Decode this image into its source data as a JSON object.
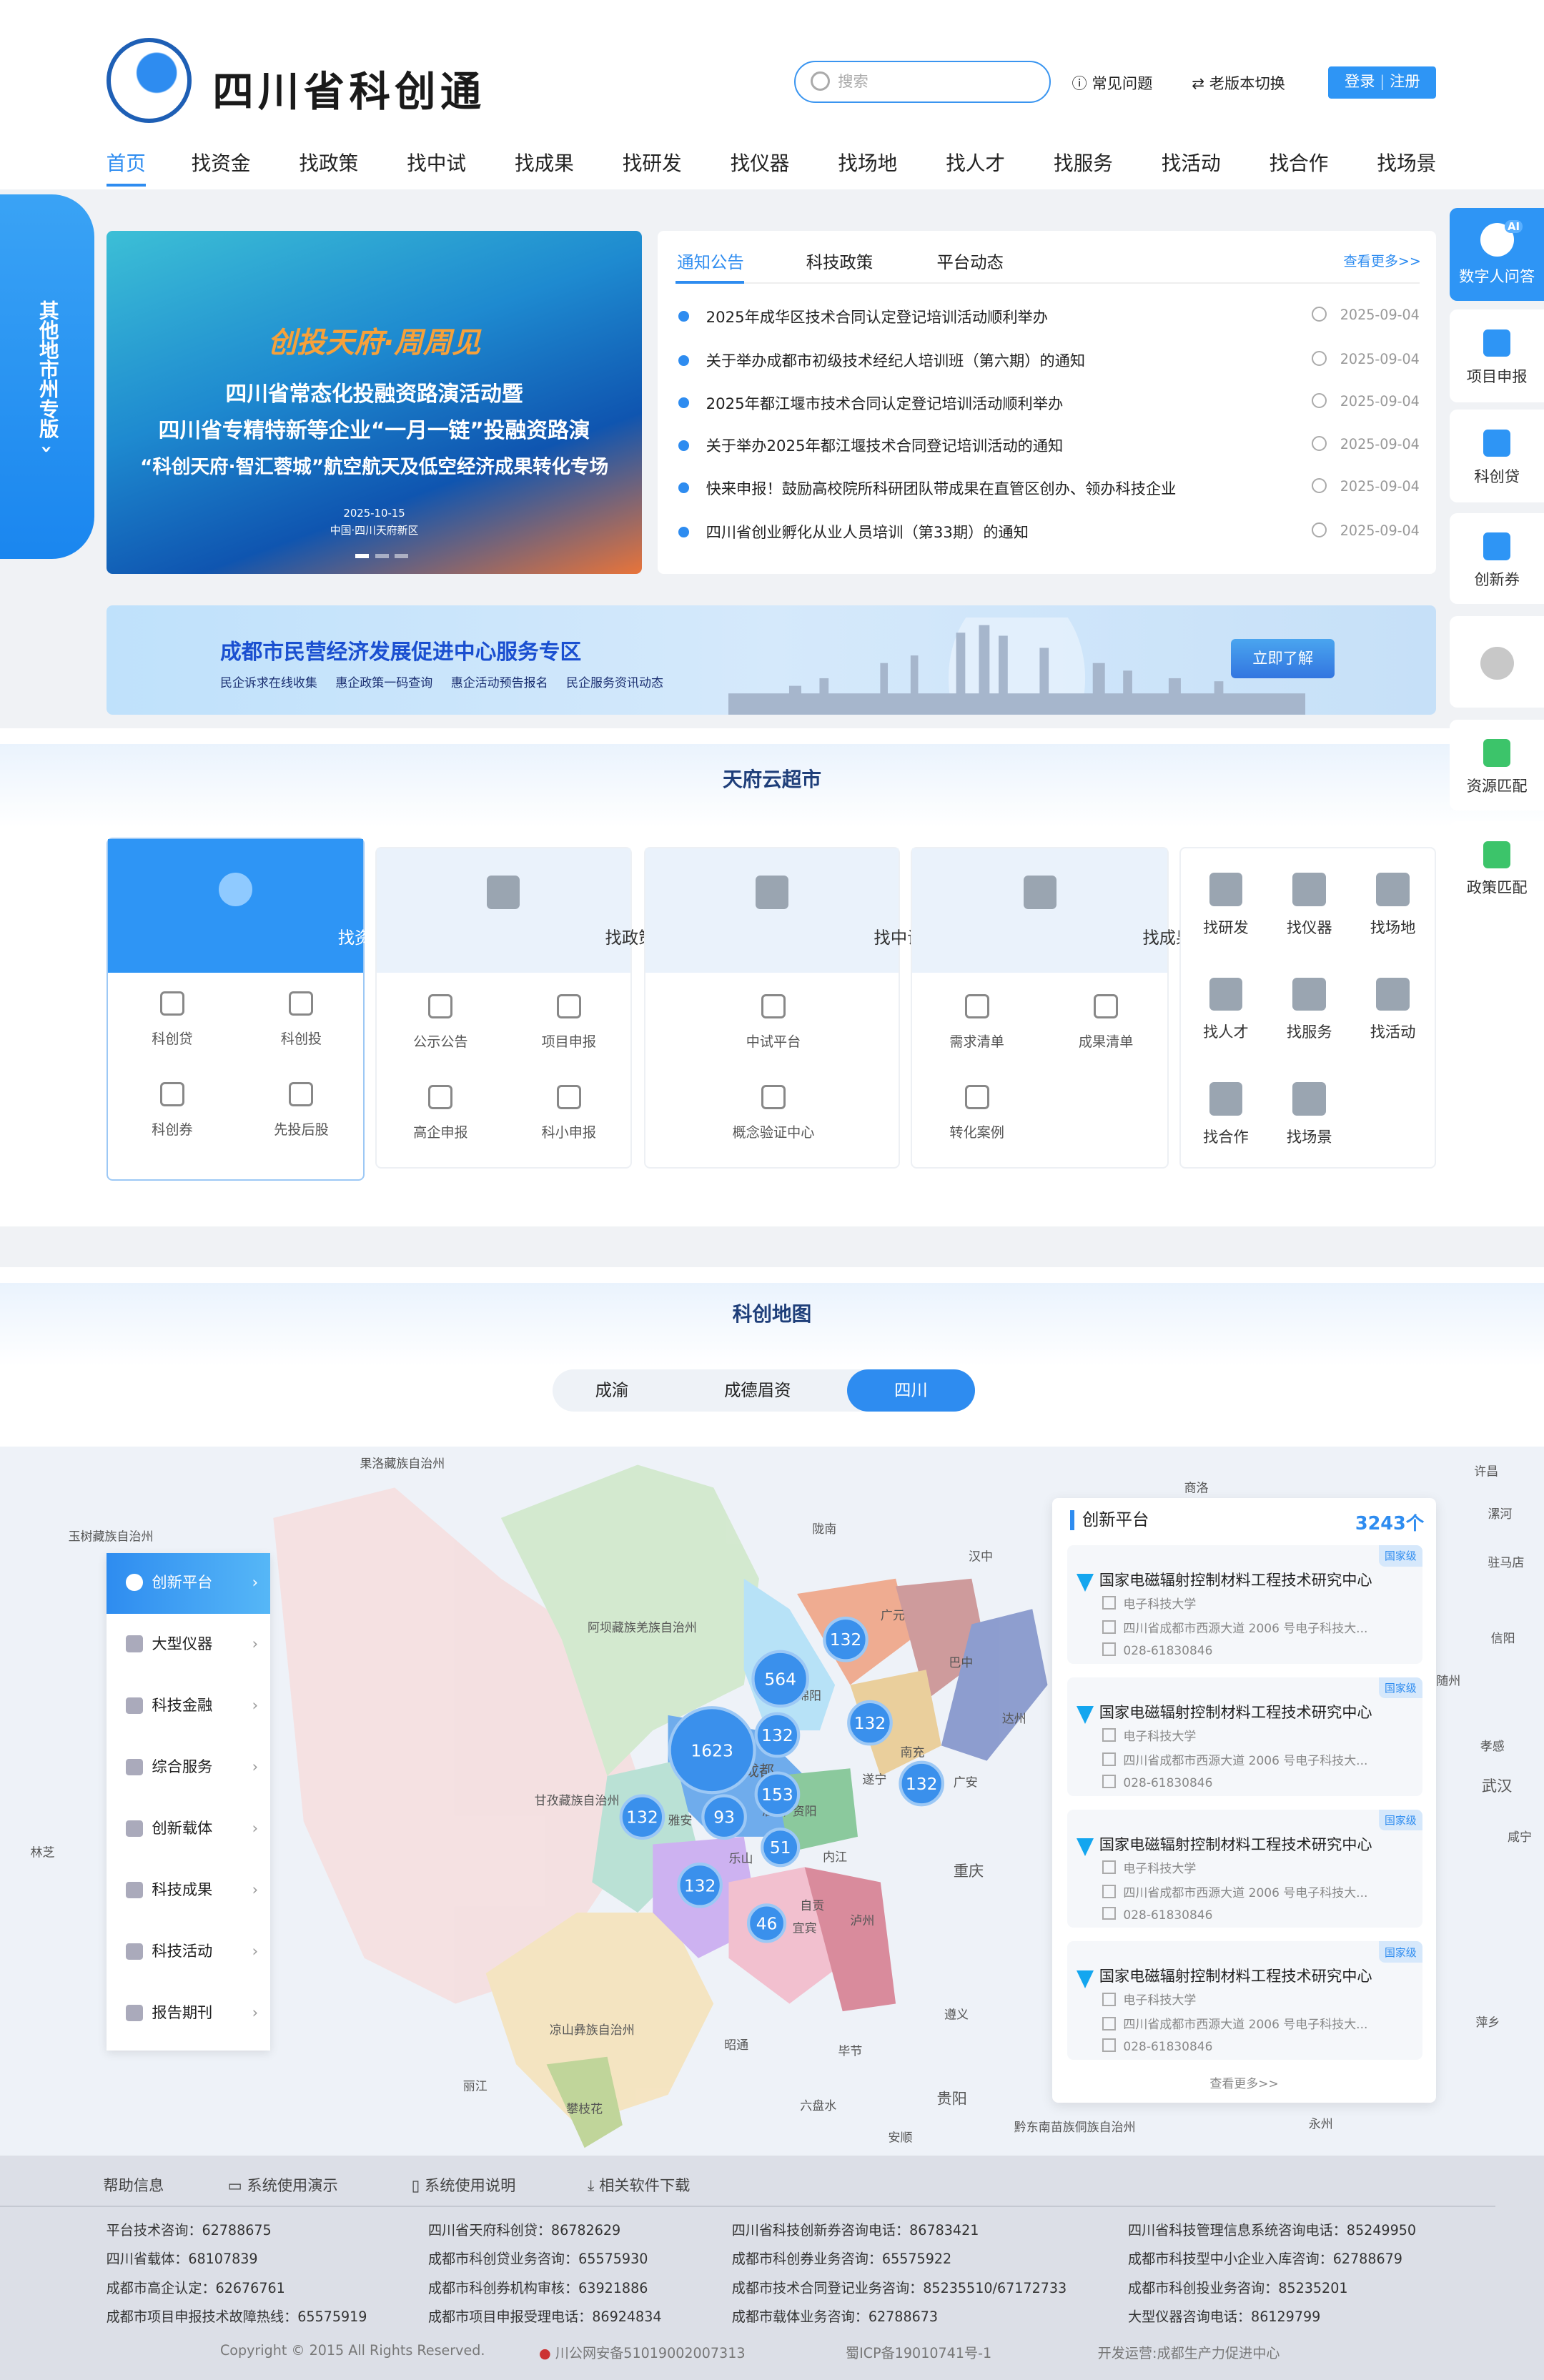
{
  "header": {
    "brand": "四川省科创通",
    "search_placeholder": "搜索",
    "faq": "常见问题",
    "switch_version": "老版本切换",
    "login": "登录",
    "register": "注册"
  },
  "nav": [
    "首页",
    "找资金",
    "找政策",
    "找中试",
    "找成果",
    "找研发",
    "找仪器",
    "找场地",
    "找人才",
    "找服务",
    "找活动",
    "找合作",
    "找场景"
  ],
  "left_tab": "其他地市州专版",
  "carousel": {
    "slogan": "创投天府·周周见",
    "line1": "四川省常态化投融资路演活动暨",
    "line2": "四川省专精特新等企业“一月一链”投融资路演",
    "line3": "“科创天府·智汇蓉城”航空航天及低空经济成果转化专场",
    "date": "2025-10-15",
    "place": "中国·四川天府新区",
    "slides": 3,
    "active_slide": 1
  },
  "news": {
    "tabs": [
      "通知公告",
      "科技政策",
      "平台动态"
    ],
    "more": "查看更多>>",
    "items": [
      {
        "title": "2025年成华区技术合同认定登记培训活动顺利举办",
        "date": "2025-09-04"
      },
      {
        "title": "关于举办成都市初级技术经纪人培训班（第六期）的通知",
        "date": "2025-09-04"
      },
      {
        "title": "2025年都江堰市技术合同认定登记培训活动顺利举办",
        "date": "2025-09-04"
      },
      {
        "title": "关于举办2025年都江堰技术合同登记培训活动的通知",
        "date": "2025-09-04"
      },
      {
        "title": "快来申报！鼓励高校院所科研团队带成果在直管区创办、领办科技企业",
        "date": "2025-09-04"
      },
      {
        "title": "四川省创业孵化从业人员培训（第33期）的通知",
        "date": "2025-09-04"
      }
    ]
  },
  "banner": {
    "title": "成都市民营经济发展促进中心服务专区",
    "links": [
      "民企诉求在线收集",
      "惠企政策一码查询",
      "惠企活动预告报名",
      "民企服务资讯动态"
    ],
    "button": "立即了解"
  },
  "market": {
    "title": "天府云超市",
    "cards": [
      {
        "label": "找资金",
        "items": [
          "科创贷",
          "科创投",
          "科创券",
          "先投后股"
        ]
      },
      {
        "label": "找政策",
        "items": [
          "公示公告",
          "项目申报",
          "高企申报",
          "科小申报"
        ]
      },
      {
        "label": "找中试",
        "items": [
          "中试平台",
          "概念验证中心"
        ]
      },
      {
        "label": "找成果",
        "items": [
          "需求清单",
          "成果清单",
          "转化案例"
        ]
      }
    ],
    "grid": [
      "找研发",
      "找仪器",
      "找场地",
      "找人才",
      "找服务",
      "找活动",
      "找合作",
      "找场景"
    ]
  },
  "map": {
    "title": "科创地图",
    "tabs": [
      "成渝",
      "成德眉资",
      "四川"
    ],
    "active_tab": "四川",
    "menu": [
      "创新平台",
      "大型仪器",
      "科技金融",
      "综合服务",
      "创新载体",
      "科技成果",
      "科技活动",
      "报告期刊"
    ],
    "clusters": [
      132,
      564,
      1623,
      132,
      132,
      153,
      132,
      93,
      51,
      132,
      46,
      132
    ],
    "places": [
      "果洛藏族自治州",
      "玉树藏族自治州",
      "陇南",
      "汉中",
      "商洛",
      "阿坝藏族羌族自治州",
      "广元",
      "巴中",
      "达州",
      "绵阳",
      "甘孜藏族自治州",
      "成都",
      "南充",
      "遂宁",
      "广安",
      "雅安",
      "眉山",
      "资阳",
      "乐山",
      "内江",
      "重庆",
      "自贡",
      "泸州",
      "宜宾",
      "凉山彝族自治州",
      "昭通",
      "毕节",
      "遵义",
      "丽江",
      "攀枝花",
      "六盘水",
      "贵阳",
      "安顺",
      "黔东南苗族侗族自治州",
      "林芝",
      "武汉",
      "信阳",
      "驻马店",
      "孝感",
      "随州",
      "咸宁",
      "萍乡",
      "永州",
      "许昌",
      "漯河"
    ],
    "panel": {
      "title": "创新平台",
      "count": "3243个",
      "more": "查看更多>>",
      "items": [
        {
          "name": "国家电磁辐射控制材料工程技术研究中心",
          "level": "国家级",
          "org": "电子科技大学",
          "address": "四川省成都市西源大道 2006 号电子科技大...",
          "phone": "028-61830846"
        },
        {
          "name": "国家电磁辐射控制材料工程技术研究中心",
          "level": "国家级",
          "org": "电子科技大学",
          "address": "四川省成都市西源大道 2006 号电子科技大...",
          "phone": "028-61830846"
        },
        {
          "name": "国家电磁辐射控制材料工程技术研究中心",
          "level": "国家级",
          "org": "电子科技大学",
          "address": "四川省成都市西源大道 2006 号电子科技大...",
          "phone": "028-61830846"
        },
        {
          "name": "国家电磁辐射控制材料工程技术研究中心",
          "level": "国家级",
          "org": "电子科技大学",
          "address": "四川省成都市西源大道 2006 号电子科技大...",
          "phone": "028-61830846"
        }
      ]
    }
  },
  "right_sidebar": [
    "数字人问答",
    "项目申报",
    "科创贷",
    "创新券",
    "",
    "资源匹配",
    "政策匹配"
  ],
  "right_sidebar_ai_badge": "AI",
  "footer": {
    "links": [
      "帮助信息",
      "系统使用演示",
      "系统使用说明",
      "相关软件下载"
    ],
    "columns": [
      [
        "平台技术咨询：62788675",
        "四川省载体：68107839",
        "成都市高企认定：62676761",
        "成都市项目申报技术故障热线：65575919"
      ],
      [
        "四川省天府科创贷：86782629",
        "成都市科创贷业务咨询：65575930",
        "成都市科创券机构审核：63921886",
        "成都市项目申报受理电话：86924834"
      ],
      [
        "四川省科技创新券咨询电话：86783421",
        "成都市科创券业务咨询：65575922",
        "成都市技术合同登记业务咨询：85235510/67172733",
        "成都市载体业务咨询：62788673"
      ],
      [
        "四川省科技管理信息系统咨询电话：85249950",
        "成都市科技型中小企业入库咨询：62788679",
        "成都市科创投业务咨询：85235201",
        "大型仪器咨询电话：86129799"
      ]
    ],
    "copyright": "Copyright © 2015 All Rights Reserved.",
    "police": "川公网安备51019002007313",
    "icp": "蜀ICP备19010741号-1",
    "operator": "开发运营:成都生产力促进中心"
  },
  "colors": {
    "primary": "#2e8cf0",
    "footer_bg": "#dcdfe7"
  }
}
